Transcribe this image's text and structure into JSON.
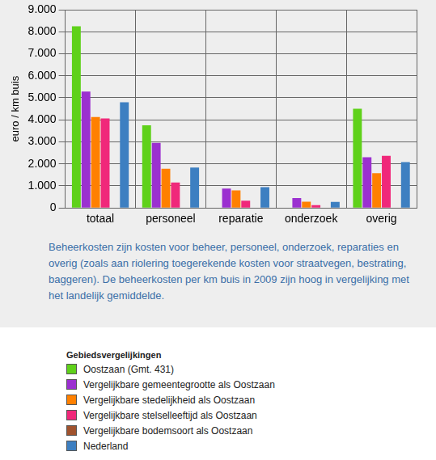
{
  "chart_data": {
    "type": "bar",
    "y_label": "euro / km buis",
    "categories": [
      "totaal",
      "personeel",
      "reparatie",
      "onderzoek",
      "overig"
    ],
    "series": [
      {
        "name": "Oostzaan (Gmt. 431)",
        "color": "#5fd11a",
        "values": [
          8250,
          3750,
          null,
          null,
          4500
        ]
      },
      {
        "name": "Vergelijkbare gemeentegrootte als Oostzaan",
        "color": "#9b30d0",
        "values": [
          5280,
          2950,
          880,
          450,
          2300
        ]
      },
      {
        "name": "Vergelijkbare stedelijkheid als Oostzaan",
        "color": "#ff8000",
        "values": [
          4130,
          1780,
          800,
          280,
          1580
        ]
      },
      {
        "name": "Vergelijkbare stelselleeftijd als Oostzaan",
        "color": "#f0287a",
        "values": [
          4060,
          1150,
          330,
          130,
          2370
        ]
      },
      {
        "name": "Vergelijkbare bodemsoort als Oostzaan",
        "color": "#a0522d",
        "values": [
          null,
          null,
          null,
          null,
          null
        ]
      },
      {
        "name": "Nederland",
        "color": "#3d7fc1",
        "values": [
          4800,
          1830,
          940,
          270,
          2080
        ]
      }
    ],
    "ylim": [
      0,
      9000
    ],
    "yticks": [
      0,
      {
        "value": 1000,
        "label": "1.000"
      },
      {
        "value": 2000,
        "label": "2.000"
      },
      {
        "value": 3000,
        "label": "3.000"
      },
      {
        "value": 4000,
        "label": "4.000"
      },
      {
        "value": 5000,
        "label": "5.000"
      },
      {
        "value": 6000,
        "label": "6.000"
      },
      {
        "value": 7000,
        "label": "7.000"
      },
      {
        "value": 8000,
        "label": "8.000"
      },
      {
        "value": 9000,
        "label": "9.000"
      }
    ],
    "grid": true,
    "legend": "bottom",
    "legend_title": "Gebiedsvergelijkingen",
    "caption": "Beheerkosten zijn kosten voor beheer, personeel, onderzoek, reparaties en overig (zoals aan riolering toegerekende kosten voor straatvegen, bestrating, baggeren). De beheerkosten per km buis in 2009 zijn hoog in vergelijking met het landelijk gemiddelde."
  }
}
